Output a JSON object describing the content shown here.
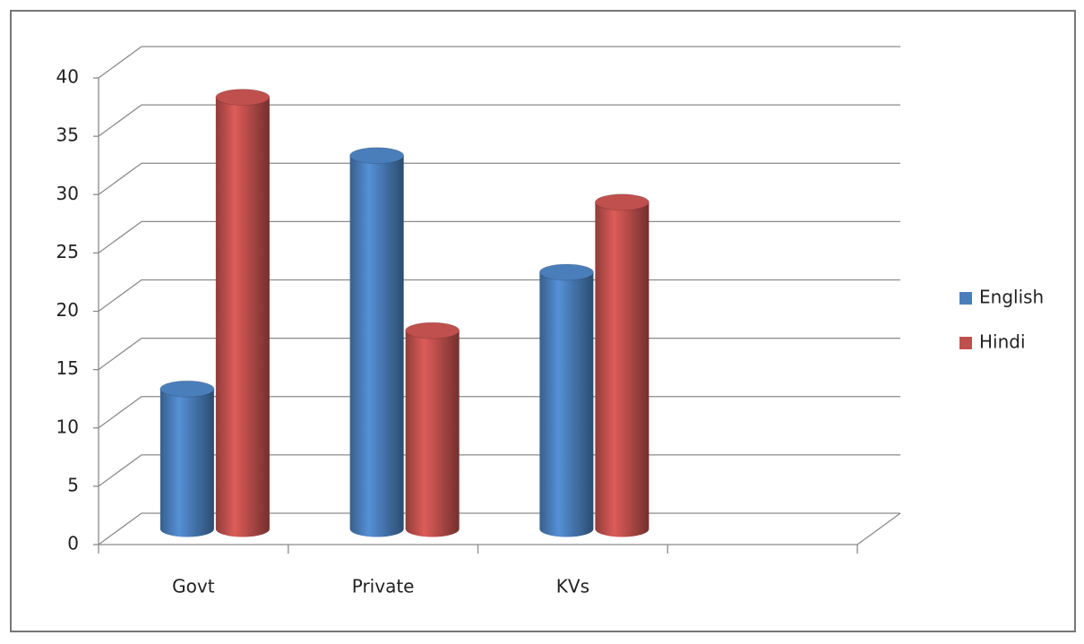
{
  "chart_data": {
    "type": "bar3d",
    "categories": [
      "Govt",
      "Private",
      "KVs",
      null
    ],
    "series": [
      {
        "name": "English",
        "color": "#4a7ebb",
        "values": [
          12,
          32,
          22,
          null
        ]
      },
      {
        "name": "Hindi",
        "color": "#c0504d",
        "values": [
          37,
          17,
          28,
          null
        ]
      }
    ],
    "ylim": [
      0,
      40
    ],
    "yticks": [
      0,
      5,
      10,
      15,
      20,
      25,
      30,
      35,
      40
    ],
    "grid": true,
    "legend": "right"
  }
}
